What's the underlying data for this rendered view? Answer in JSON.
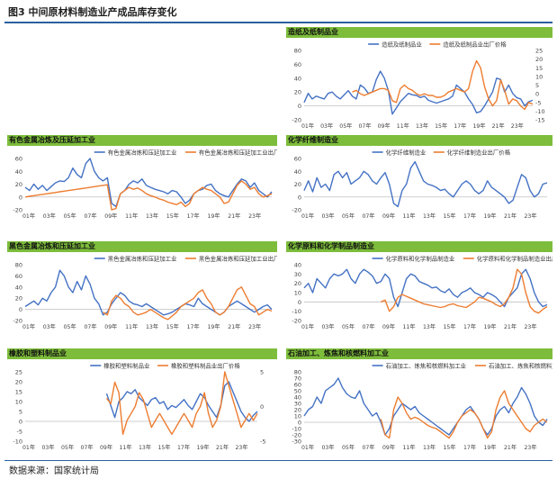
{
  "figure": {
    "title": "图3 中间原材料制造业产成品库存变化",
    "source": "数据来源：国家统计局"
  },
  "colors": {
    "industry": "#4472c4",
    "price": "#ed7d31",
    "header": "#7dbd3b",
    "grid": "#d9d9d9"
  },
  "chart_data": [
    {
      "type": "line",
      "title": "造纸及纸制品业",
      "x_tick_labels": [
        "01年",
        "03年",
        "05年",
        "07年",
        "09年",
        "11年",
        "13年",
        "15年",
        "17年",
        "19年",
        "21年",
        "23年"
      ],
      "ylim": [
        -20,
        80
      ],
      "y_ticks": [
        -20,
        0,
        20,
        40,
        60,
        80
      ],
      "y2lim": [
        -15,
        25
      ],
      "y2_ticks": [
        -15,
        -10,
        -5,
        0,
        5,
        10,
        15,
        20,
        25
      ],
      "series": [
        {
          "name": "造纸及纸制品业",
          "axis": "left",
          "values": [
            5,
            18,
            10,
            14,
            12,
            10,
            18,
            20,
            14,
            10,
            16,
            22,
            14,
            10,
            30,
            26,
            18,
            20,
            38,
            50,
            40,
            22,
            -12,
            -3,
            6,
            12,
            18,
            16,
            15,
            12,
            14,
            8,
            6,
            4,
            6,
            8,
            10,
            14,
            30,
            25,
            20,
            10,
            2,
            -10,
            -8,
            0,
            10,
            20,
            40,
            38,
            20,
            30,
            18,
            12,
            10,
            0,
            6,
            8
          ]
        },
        {
          "name": "造纸及纸制品业出厂价格",
          "axis": "right",
          "values": [
            null,
            null,
            null,
            null,
            null,
            null,
            null,
            null,
            null,
            null,
            null,
            null,
            1,
            2,
            0,
            -1,
            0,
            1,
            2,
            3,
            3,
            2,
            -4,
            -5,
            3,
            5,
            3,
            2,
            0,
            -1,
            0,
            -1,
            -1,
            -2,
            -2,
            -1,
            1,
            2,
            3,
            2,
            1,
            3,
            13,
            19,
            15,
            4,
            -3,
            -7,
            -4,
            8,
            2,
            -6,
            -3,
            -4,
            -7,
            -9,
            -5,
            -6
          ]
        }
      ]
    },
    {
      "type": "line",
      "title": "有色金属冶炼及压延加工业",
      "x_tick_labels": [
        "01年",
        "03年",
        "05年",
        "07年",
        "09年",
        "11年",
        "13年",
        "15年",
        "17年",
        "19年",
        "21年",
        "23年"
      ],
      "ylim": [
        -20,
        60
      ],
      "y_ticks": [
        -20,
        0,
        20,
        40,
        60
      ],
      "series": [
        {
          "name": "有色金属冶炼和压延加工业",
          "axis": "left",
          "values": [
            15,
            10,
            20,
            12,
            18,
            10,
            16,
            22,
            25,
            24,
            30,
            45,
            35,
            30,
            52,
            60,
            40,
            30,
            25,
            30,
            -10,
            -15,
            5,
            10,
            20,
            25,
            22,
            28,
            18,
            15,
            12,
            10,
            8,
            5,
            10,
            8,
            0,
            -10,
            -5,
            5,
            10,
            12,
            18,
            20,
            10,
            5,
            2,
            0,
            10,
            20,
            28,
            25,
            15,
            22,
            10,
            5,
            0,
            8
          ]
        },
        {
          "name": "有色金属冶炼和压延加工业出厂价格",
          "axis": "left",
          "values": [
            0,
            1,
            2,
            3,
            4,
            5,
            6,
            7,
            8,
            9,
            10,
            11,
            12,
            13,
            14,
            15,
            16,
            17,
            18,
            19,
            -20,
            -18,
            5,
            10,
            15,
            12,
            14,
            10,
            5,
            2,
            0,
            -3,
            -5,
            -8,
            -10,
            -12,
            -8,
            -15,
            -10,
            5,
            10,
            15,
            12,
            10,
            5,
            0,
            -10,
            -8,
            5,
            18,
            25,
            20,
            12,
            15,
            5,
            0,
            2,
            5
          ]
        }
      ]
    },
    {
      "type": "line",
      "title": "化学纤维制造业",
      "x_tick_labels": [
        "01年",
        "03年",
        "05年",
        "07年",
        "09年",
        "11年",
        "13年",
        "15年",
        "17年",
        "19年",
        "21年",
        "23年"
      ],
      "ylim": [
        -20,
        60
      ],
      "y_ticks": [
        -20,
        0,
        20,
        40,
        60
      ],
      "series": [
        {
          "name": "化学纤维制造业",
          "axis": "left",
          "values": [
            10,
            25,
            8,
            30,
            15,
            20,
            10,
            35,
            40,
            30,
            38,
            20,
            25,
            30,
            40,
            35,
            25,
            20,
            30,
            38,
            20,
            -10,
            -15,
            10,
            20,
            45,
            55,
            40,
            25,
            20,
            18,
            15,
            10,
            12,
            5,
            0,
            10,
            20,
            25,
            20,
            10,
            5,
            10,
            25,
            15,
            10,
            5,
            0,
            -10,
            -5,
            15,
            35,
            30,
            10,
            0,
            5,
            20,
            22
          ]
        },
        {
          "name": "化学纤维制造业出厂价格",
          "axis": "left",
          "values": [
            null,
            null,
            null,
            null,
            null,
            null,
            null,
            null,
            null,
            null,
            null,
            null,
            null,
            null,
            null,
            null,
            null,
            null,
            null,
            null,
            null,
            null,
            null,
            null,
            null,
            null,
            null,
            null,
            null,
            null,
            null,
            null,
            null,
            null,
            null,
            null,
            null,
            null,
            null,
            null,
            null,
            null,
            null,
            null,
            null,
            null,
            null,
            null,
            null,
            null,
            null,
            null,
            null,
            null,
            null,
            null,
            null,
            null
          ]
        }
      ]
    },
    {
      "type": "line",
      "title": "黑色金属冶炼和压延加工业",
      "x_tick_labels": [
        "01年",
        "03年",
        "05年",
        "07年",
        "09年",
        "11年",
        "13年",
        "15年",
        "17年",
        "19年",
        "21年",
        "23年"
      ],
      "ylim": [
        -20,
        80
      ],
      "y_ticks": [
        -20,
        0,
        20,
        40,
        60,
        80
      ],
      "series": [
        {
          "name": "黑色金属冶炼和压延加工业",
          "axis": "left",
          "values": [
            5,
            10,
            15,
            8,
            20,
            15,
            30,
            40,
            70,
            60,
            40,
            30,
            50,
            35,
            60,
            45,
            20,
            10,
            -10,
            -5,
            10,
            20,
            30,
            25,
            15,
            10,
            8,
            5,
            10,
            5,
            0,
            -5,
            -10,
            -8,
            -5,
            0,
            5,
            10,
            8,
            5,
            20,
            10,
            5,
            0,
            -5,
            -10,
            -5,
            5,
            10,
            15,
            10,
            5,
            0,
            -5,
            0,
            5,
            8,
            0
          ]
        },
        {
          "name": "黑色金属冶炼和压延加工业出厂价格",
          "axis": "left",
          "values": [
            null,
            null,
            null,
            null,
            null,
            null,
            null,
            null,
            null,
            null,
            null,
            null,
            null,
            null,
            null,
            null,
            null,
            null,
            -5,
            -10,
            15,
            25,
            20,
            10,
            5,
            -5,
            -10,
            -8,
            -5,
            0,
            -5,
            -10,
            -15,
            -18,
            -12,
            -5,
            5,
            10,
            15,
            20,
            30,
            35,
            20,
            10,
            -5,
            -10,
            -5,
            5,
            20,
            35,
            40,
            25,
            10,
            5,
            -10,
            -5,
            0,
            -3
          ]
        }
      ]
    },
    {
      "type": "line",
      "title": "化学原料和化学制品制造业",
      "x_tick_labels": [
        "01年",
        "03年",
        "05年",
        "07年",
        "09年",
        "11年",
        "13年",
        "15年",
        "17年",
        "19年",
        "21年",
        "23年"
      ],
      "ylim": [
        -20,
        40
      ],
      "y_ticks": [
        -20,
        -10,
        0,
        10,
        20,
        30,
        40
      ],
      "series": [
        {
          "name": "化学原料和化学制品制造业",
          "axis": "left",
          "values": [
            15,
            20,
            10,
            25,
            20,
            15,
            25,
            30,
            28,
            30,
            35,
            25,
            20,
            30,
            35,
            32,
            28,
            20,
            22,
            30,
            25,
            5,
            -5,
            10,
            25,
            30,
            28,
            22,
            20,
            18,
            15,
            16,
            12,
            10,
            14,
            8,
            5,
            10,
            12,
            15,
            10,
            8,
            5,
            10,
            8,
            5,
            0,
            -5,
            5,
            10,
            15,
            30,
            35,
            25,
            10,
            0,
            -5,
            -3
          ]
        },
        {
          "name": "化学原料和化学制品制造业出厂价格",
          "axis": "left",
          "values": [
            null,
            null,
            null,
            null,
            null,
            null,
            null,
            null,
            null,
            null,
            null,
            null,
            null,
            null,
            null,
            null,
            null,
            null,
            0,
            2,
            -10,
            -5,
            5,
            8,
            6,
            4,
            2,
            0,
            -2,
            -3,
            -4,
            -5,
            -6,
            -5,
            -3,
            -2,
            -4,
            -5,
            -6,
            -3,
            0,
            5,
            4,
            2,
            0,
            -3,
            -5,
            -2,
            5,
            15,
            35,
            30,
            10,
            -5,
            -10,
            -12,
            -8,
            -5
          ]
        }
      ]
    },
    {
      "type": "line",
      "title": "橡胶和塑料制品业",
      "x_tick_labels": [
        "01年",
        "03年",
        "05年",
        "07年",
        "09年",
        "11年",
        "13年",
        "15年",
        "17年",
        "19年",
        "21年",
        "23年"
      ],
      "ylim": [
        -10,
        25
      ],
      "y_ticks": [
        -10,
        -5,
        0,
        5,
        10,
        15,
        20,
        25
      ],
      "y2lim": [
        -5,
        5
      ],
      "y2_ticks": [
        -5,
        0,
        5
      ],
      "series": [
        {
          "name": "橡胶和塑料制品业",
          "axis": "left",
          "values": [
            null,
            null,
            null,
            null,
            null,
            null,
            null,
            null,
            null,
            null,
            null,
            null,
            null,
            null,
            null,
            null,
            null,
            null,
            null,
            null,
            14,
            8,
            2,
            10,
            12,
            15,
            14,
            16,
            12,
            10,
            8,
            11,
            12,
            9,
            10,
            6,
            8,
            7,
            9,
            11,
            8,
            6,
            10,
            14,
            12,
            8,
            5,
            2,
            8,
            18,
            20,
            15,
            10,
            5,
            2,
            0,
            3,
            5
          ]
        },
        {
          "name": "橡胶和塑料制品业出厂价格",
          "axis": "right",
          "values": [
            null,
            null,
            null,
            null,
            null,
            null,
            null,
            null,
            null,
            null,
            null,
            null,
            null,
            null,
            null,
            null,
            null,
            null,
            null,
            null,
            1.2,
            0.4,
            3.5,
            2,
            -4,
            -2,
            -1,
            0,
            2,
            1,
            -1,
            -3,
            -2,
            -1,
            -2,
            -3,
            -4,
            -3,
            -2,
            -1,
            -2,
            -3,
            -1,
            0,
            2,
            -1,
            -3,
            -2,
            0,
            5,
            3,
            1,
            -1,
            -3,
            -2,
            -1,
            -2,
            -1
          ]
        }
      ]
    },
    {
      "type": "line",
      "title": "石油加工、炼焦和核燃料加工业",
      "x_tick_labels": [
        "01年",
        "03年",
        "05年",
        "07年",
        "09年",
        "11年",
        "13年",
        "15年",
        "17年",
        "19年",
        "21年",
        "23年"
      ],
      "ylim": [
        -30,
        80
      ],
      "y_ticks": [
        -30,
        -20,
        -10,
        0,
        10,
        20,
        30,
        40,
        50,
        60,
        70,
        80
      ],
      "series": [
        {
          "name": "石油加工、炼焦和核燃料加工业",
          "axis": "left",
          "values": [
            10,
            20,
            25,
            40,
            30,
            50,
            55,
            60,
            70,
            55,
            45,
            40,
            38,
            50,
            30,
            20,
            10,
            15,
            0,
            -20,
            -10,
            10,
            20,
            30,
            25,
            20,
            25,
            15,
            10,
            5,
            0,
            -5,
            -10,
            -15,
            -20,
            -10,
            0,
            10,
            20,
            25,
            15,
            5,
            -10,
            -20,
            -10,
            10,
            20,
            25,
            15,
            30,
            40,
            55,
            45,
            30,
            10,
            0,
            -5,
            5
          ]
        },
        {
          "name": "石油加工、炼焦和核燃料加工业出厂价格",
          "axis": "left",
          "values": [
            null,
            null,
            null,
            null,
            null,
            null,
            null,
            null,
            null,
            null,
            null,
            null,
            null,
            null,
            null,
            null,
            null,
            null,
            5,
            -20,
            -25,
            20,
            40,
            30,
            15,
            5,
            8,
            5,
            0,
            -5,
            -8,
            -10,
            -15,
            -20,
            -25,
            -15,
            0,
            10,
            15,
            20,
            15,
            5,
            -10,
            -25,
            -15,
            20,
            40,
            50,
            30,
            20,
            10,
            0,
            -10,
            -15,
            -5,
            0,
            5,
            0
          ]
        }
      ]
    }
  ]
}
